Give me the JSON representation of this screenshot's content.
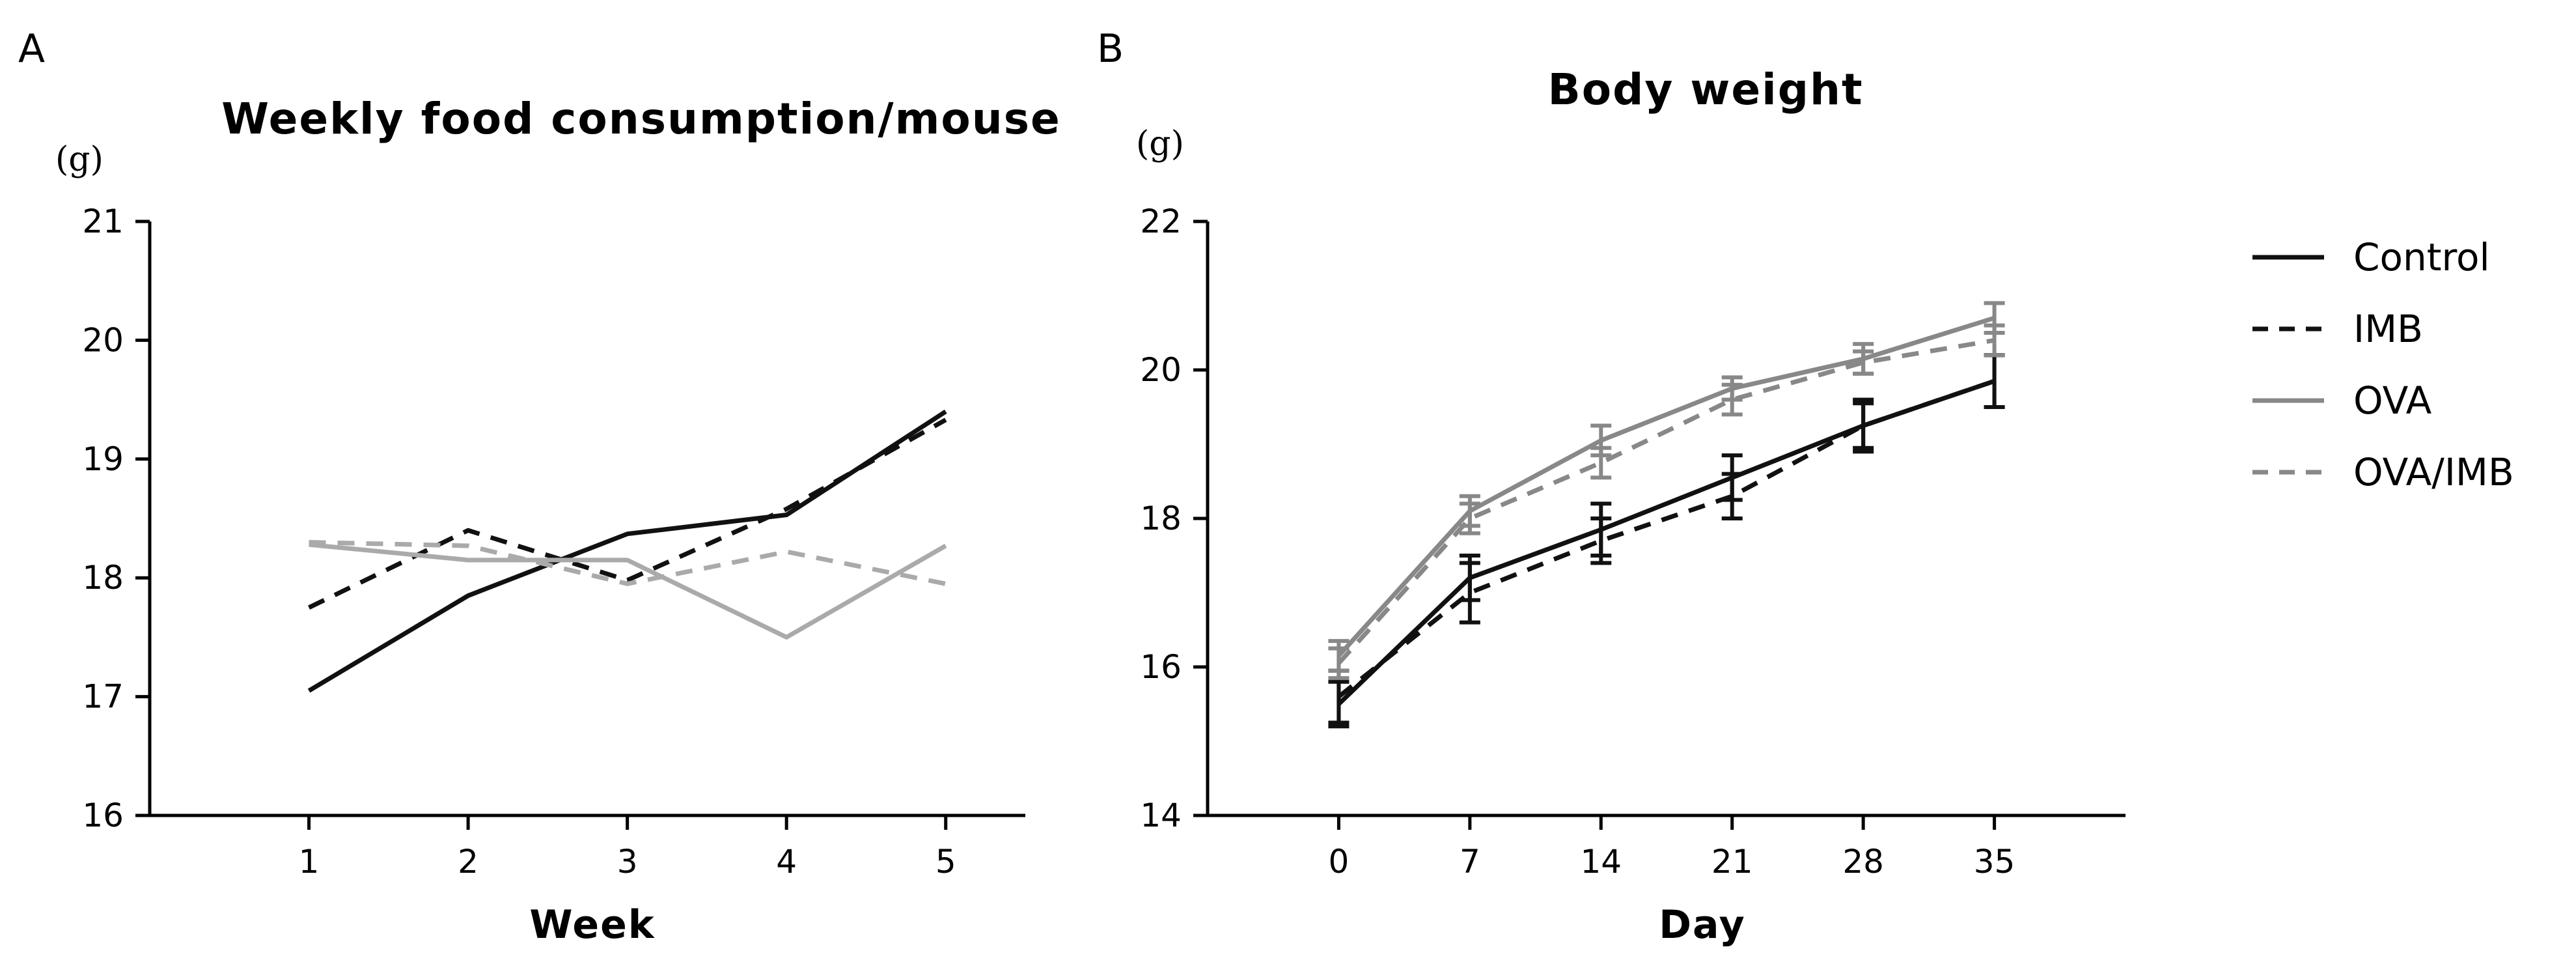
{
  "chart_data": [
    {
      "panel": "A",
      "type": "line",
      "title": "Weekly food consumption/mouse",
      "ylabel": "(g)",
      "xlabel": "Week",
      "x": [
        1,
        2,
        3,
        4,
        5
      ],
      "xlim": [
        0,
        5.5
      ],
      "ylim": [
        16,
        21
      ],
      "yticks": [
        16,
        17,
        18,
        19,
        20,
        21
      ],
      "series": [
        {
          "name": "Control",
          "color": "#111111",
          "dash": "solid",
          "values": [
            17.05,
            17.85,
            18.37,
            18.53,
            19.4
          ]
        },
        {
          "name": "IMB",
          "color": "#111111",
          "dash": "dashed",
          "values": [
            17.75,
            18.4,
            17.98,
            18.58,
            19.33
          ]
        },
        {
          "name": "OVA",
          "color": "#aaaaaa",
          "dash": "solid",
          "values": [
            18.28,
            18.15,
            18.15,
            17.5,
            18.27
          ]
        },
        {
          "name": "OVA/IMB",
          "color": "#aaaaaa",
          "dash": "dashed",
          "values": [
            18.3,
            18.27,
            17.95,
            18.22,
            17.95
          ]
        }
      ]
    },
    {
      "panel": "B",
      "type": "line",
      "title": "Body weight",
      "ylabel": "(g)",
      "xlabel": "Day",
      "x": [
        0,
        7,
        14,
        21,
        28,
        35
      ],
      "xlim": [
        -7,
        42
      ],
      "ylim": [
        14,
        22
      ],
      "yticks": [
        14,
        16,
        18,
        20,
        22
      ],
      "series": [
        {
          "name": "Control",
          "color": "#111111",
          "dash": "solid",
          "values": [
            15.5,
            17.2,
            17.85,
            18.55,
            19.25,
            19.85
          ],
          "errors": [
            0.3,
            0.3,
            0.35,
            0.3,
            0.35,
            0.35
          ]
        },
        {
          "name": "IMB",
          "color": "#111111",
          "dash": "dashed",
          "values": [
            15.6,
            17.0,
            17.7,
            18.3,
            19.25,
            19.85
          ],
          "errors": [
            0.35,
            0.4,
            0.3,
            0.3,
            0.3,
            0.35
          ]
        },
        {
          "name": "OVA",
          "color": "#888888",
          "dash": "solid",
          "values": [
            16.15,
            18.1,
            19.05,
            19.75,
            20.15,
            20.7
          ],
          "errors": [
            0.2,
            0.2,
            0.2,
            0.15,
            0.2,
            0.2
          ]
        },
        {
          "name": "OVA/IMB",
          "color": "#888888",
          "dash": "dashed",
          "values": [
            16.05,
            18.0,
            18.75,
            19.6,
            20.1,
            20.4
          ],
          "errors": [
            0.2,
            0.2,
            0.2,
            0.2,
            0.15,
            0.2
          ]
        }
      ]
    }
  ],
  "legend": {
    "placement": "right",
    "entries": [
      {
        "label": "Control",
        "color": "#111111",
        "dash": "solid"
      },
      {
        "label": "IMB",
        "color": "#111111",
        "dash": "dashed"
      },
      {
        "label": "OVA",
        "color": "#888888",
        "dash": "solid"
      },
      {
        "label": "OVA/IMB",
        "color": "#888888",
        "dash": "dashed"
      }
    ]
  }
}
